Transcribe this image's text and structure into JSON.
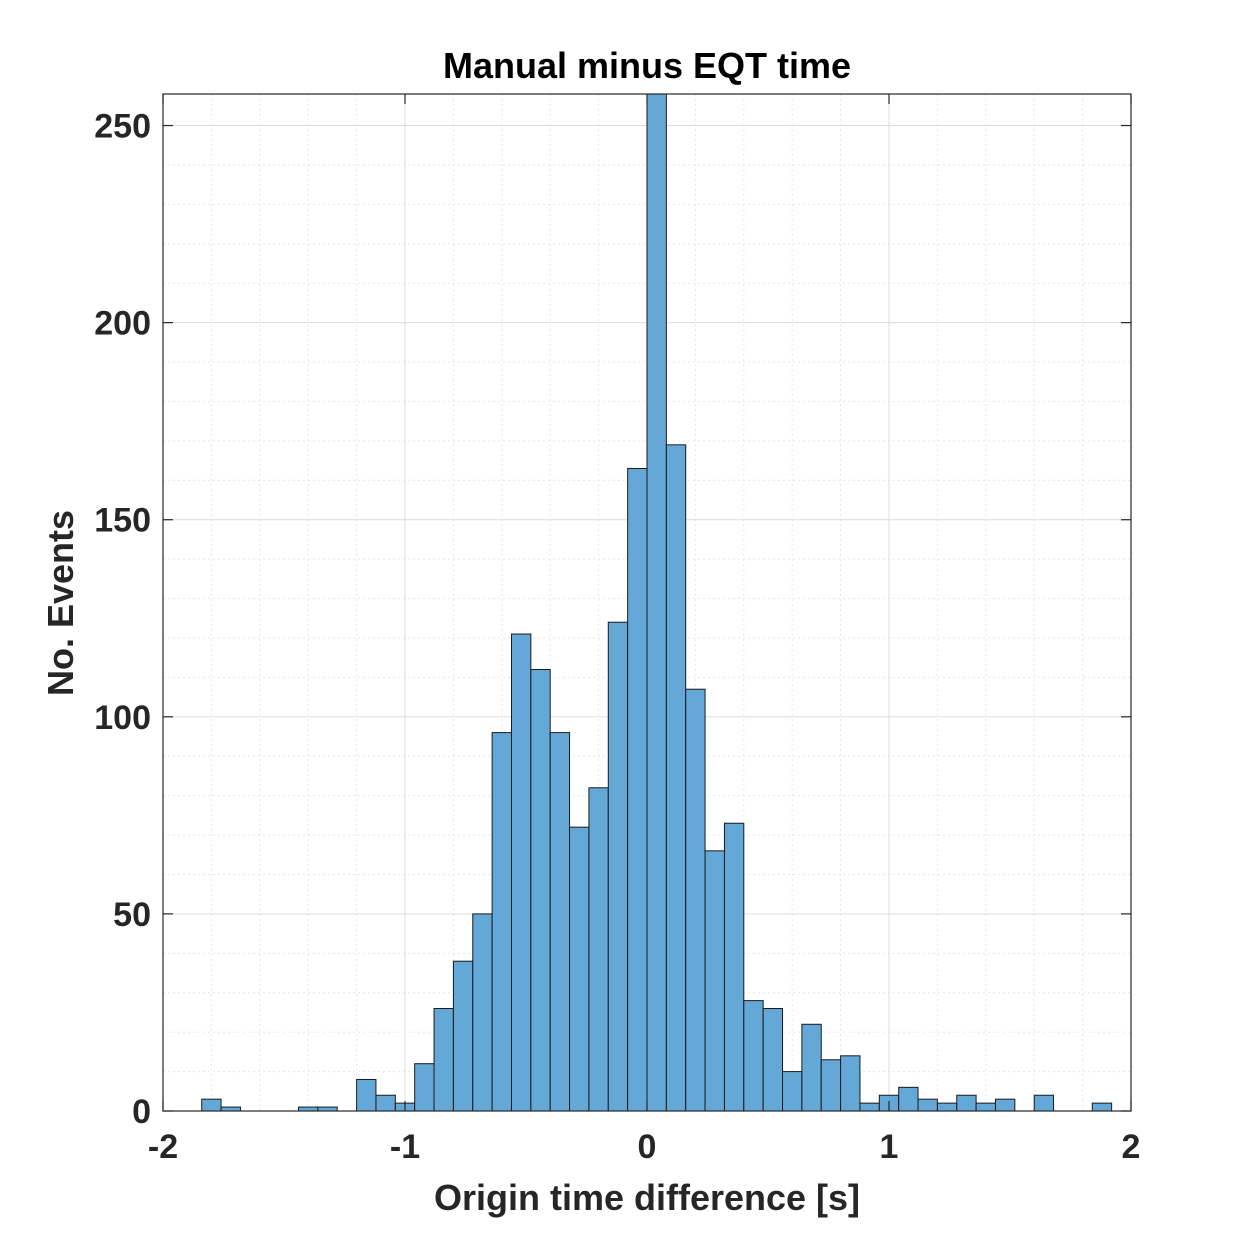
{
  "chart_data": {
    "type": "bar",
    "title": "Manual minus EQT time",
    "xlabel": "Origin time difference [s]",
    "ylabel": "No. Events",
    "xlim": [
      -2,
      2
    ],
    "ylim": [
      0,
      258
    ],
    "xticks": [
      -2,
      -1,
      0,
      1,
      2
    ],
    "xtick_labels": [
      "-2",
      "-1",
      "0",
      "1",
      "2"
    ],
    "yticks": [
      0,
      50,
      100,
      150,
      200,
      250
    ],
    "ytick_labels": [
      "0",
      "50",
      "100",
      "150",
      "200",
      "250"
    ],
    "grid": true,
    "minor_grid": true,
    "bar_color": "#64a8d8",
    "bar_edge_color": "#1a1a1a",
    "bin_width": 0.08,
    "bins": [
      {
        "x0": -1.84,
        "value": 3
      },
      {
        "x0": -1.76,
        "value": 1
      },
      {
        "x0": -1.68,
        "value": 0
      },
      {
        "x0": -1.6,
        "value": 0
      },
      {
        "x0": -1.52,
        "value": 0
      },
      {
        "x0": -1.44,
        "value": 1
      },
      {
        "x0": -1.36,
        "value": 1
      },
      {
        "x0": -1.28,
        "value": 0
      },
      {
        "x0": -1.2,
        "value": 8
      },
      {
        "x0": -1.12,
        "value": 4
      },
      {
        "x0": -1.04,
        "value": 2
      },
      {
        "x0": -0.96,
        "value": 12
      },
      {
        "x0": -0.88,
        "value": 26
      },
      {
        "x0": -0.8,
        "value": 38
      },
      {
        "x0": -0.72,
        "value": 50
      },
      {
        "x0": -0.64,
        "value": 96
      },
      {
        "x0": -0.56,
        "value": 121
      },
      {
        "x0": -0.48,
        "value": 112
      },
      {
        "x0": -0.4,
        "value": 96
      },
      {
        "x0": -0.32,
        "value": 72
      },
      {
        "x0": -0.24,
        "value": 82
      },
      {
        "x0": -0.16,
        "value": 124
      },
      {
        "x0": -0.08,
        "value": 163
      },
      {
        "x0": 0.0,
        "value": 258
      },
      {
        "x0": 0.08,
        "value": 169
      },
      {
        "x0": 0.16,
        "value": 107
      },
      {
        "x0": 0.24,
        "value": 66
      },
      {
        "x0": 0.32,
        "value": 73
      },
      {
        "x0": 0.4,
        "value": 28
      },
      {
        "x0": 0.48,
        "value": 26
      },
      {
        "x0": 0.56,
        "value": 10
      },
      {
        "x0": 0.64,
        "value": 22
      },
      {
        "x0": 0.72,
        "value": 13
      },
      {
        "x0": 0.8,
        "value": 14
      },
      {
        "x0": 0.88,
        "value": 2
      },
      {
        "x0": 0.96,
        "value": 4
      },
      {
        "x0": 1.04,
        "value": 6
      },
      {
        "x0": 1.12,
        "value": 3
      },
      {
        "x0": 1.2,
        "value": 2
      },
      {
        "x0": 1.28,
        "value": 4
      },
      {
        "x0": 1.36,
        "value": 2
      },
      {
        "x0": 1.44,
        "value": 3
      },
      {
        "x0": 1.52,
        "value": 0
      },
      {
        "x0": 1.6,
        "value": 4
      },
      {
        "x0": 1.68,
        "value": 0
      },
      {
        "x0": 1.76,
        "value": 0
      },
      {
        "x0": 1.84,
        "value": 2
      }
    ]
  }
}
